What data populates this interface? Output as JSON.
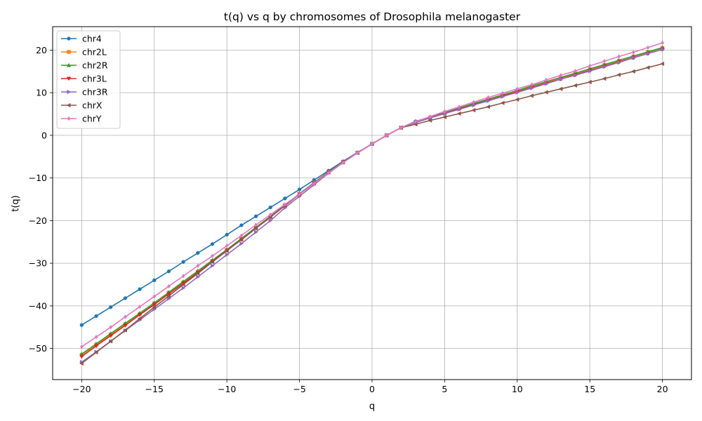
{
  "chart_data": {
    "type": "line",
    "title": "t(q) vs q by chromosomes of Drosophila melanogaster",
    "xlabel": "q",
    "ylabel": "t(q)",
    "xlim": [
      -22,
      22
    ],
    "ylim": [
      -57.3,
      25.5
    ],
    "xticks": [
      -20,
      -15,
      -10,
      -5,
      0,
      5,
      10,
      15,
      20
    ],
    "yticks": [
      -50,
      -40,
      -30,
      -20,
      -10,
      0,
      10,
      20
    ],
    "tick_labels_x": [
      "−20",
      "−15",
      "−10",
      "−5",
      "0",
      "5",
      "10",
      "15",
      "20"
    ],
    "tick_labels_y": [
      "−50",
      "−40",
      "−30",
      "−20",
      "−10",
      "0",
      "10",
      "20"
    ],
    "grid": true,
    "legend_position": "upper-left",
    "x": [
      -20,
      -19,
      -18,
      -17,
      -16,
      -15,
      -14,
      -13,
      -12,
      -11,
      -10,
      -9,
      -8,
      -7,
      -6,
      -5,
      -4,
      -3,
      -2,
      -1,
      0,
      1,
      2,
      3,
      4,
      5,
      6,
      7,
      8,
      9,
      10,
      11,
      12,
      13,
      14,
      15,
      16,
      17,
      18,
      19,
      20
    ],
    "series": [
      {
        "name": "chr4",
        "color": "#1f77b4",
        "marker": "circle",
        "values": [
          -44.5,
          -42.4,
          -40.3,
          -38.2,
          -36.1,
          -34.0,
          -31.9,
          -29.7,
          -27.6,
          -25.5,
          -23.3,
          -21.1,
          -19.0,
          -16.9,
          -14.8,
          -12.7,
          -10.5,
          -8.3,
          -6.1,
          -4.0,
          -2.0,
          0.0,
          1.8,
          3.3,
          4.3,
          5.3,
          6.2,
          7.2,
          8.3,
          9.3,
          10.2,
          11.3,
          12.3,
          13.2,
          14.2,
          15.2,
          16.2,
          17.2,
          18.2,
          19.2,
          20.2
        ]
      },
      {
        "name": "chr2L",
        "color": "#ff7f0e",
        "marker": "square",
        "values": [
          -51.5,
          -49.1,
          -46.7,
          -44.3,
          -41.9,
          -39.4,
          -36.9,
          -34.5,
          -32.0,
          -29.5,
          -26.9,
          -24.3,
          -21.7,
          -19.1,
          -16.4,
          -13.7,
          -11.1,
          -8.6,
          -6.3,
          -4.1,
          -2.0,
          0.0,
          1.8,
          3.0,
          4.1,
          5.2,
          6.3,
          7.4,
          8.4,
          9.4,
          10.4,
          11.4,
          12.4,
          13.4,
          14.5,
          15.5,
          16.5,
          17.5,
          18.5,
          19.5,
          20.5
        ]
      },
      {
        "name": "chr2R",
        "color": "#2ca02c",
        "marker": "triangle-up",
        "values": [
          -51.3,
          -48.9,
          -46.5,
          -44.1,
          -41.7,
          -39.3,
          -36.8,
          -34.3,
          -31.8,
          -29.3,
          -26.8,
          -24.2,
          -21.6,
          -19.0,
          -16.4,
          -13.7,
          -11.1,
          -8.6,
          -6.3,
          -4.1,
          -2.0,
          0.0,
          1.8,
          3.1,
          4.2,
          5.3,
          6.4,
          7.5,
          8.5,
          9.5,
          10.5,
          11.6,
          12.6,
          13.6,
          14.6,
          15.6,
          16.6,
          17.6,
          18.6,
          19.6,
          20.6
        ]
      },
      {
        "name": "chr3L",
        "color": "#d62728",
        "marker": "triangle-down",
        "values": [
          -51.9,
          -49.4,
          -47.0,
          -44.6,
          -42.1,
          -39.7,
          -37.2,
          -34.7,
          -32.2,
          -29.6,
          -27.0,
          -24.5,
          -21.8,
          -19.2,
          -16.5,
          -13.8,
          -11.2,
          -8.7,
          -6.3,
          -4.1,
          -2.0,
          0.0,
          1.8,
          3.0,
          4.1,
          5.2,
          6.2,
          7.2,
          8.2,
          9.2,
          10.2,
          11.2,
          12.2,
          13.2,
          14.2,
          15.2,
          16.2,
          17.2,
          18.2,
          19.2,
          20.2
        ]
      },
      {
        "name": "chr3R",
        "color": "#9467bd",
        "marker": "triangle-right",
        "values": [
          -53.2,
          -50.8,
          -48.3,
          -45.8,
          -43.3,
          -40.8,
          -38.3,
          -35.8,
          -33.2,
          -30.6,
          -28.0,
          -25.4,
          -22.7,
          -20.0,
          -17.0,
          -14.3,
          -11.6,
          -8.9,
          -6.4,
          -4.1,
          -2.0,
          0.0,
          1.8,
          3.0,
          4.1,
          5.1,
          6.1,
          7.1,
          8.1,
          9.1,
          10.1,
          11.1,
          12.1,
          13.2,
          14.1,
          15.1,
          16.1,
          17.1,
          18.2,
          19.2,
          20.2
        ]
      },
      {
        "name": "chrX",
        "color": "#8c564b",
        "marker": "triangle-left",
        "values": [
          -53.5,
          -50.9,
          -48.3,
          -45.7,
          -43.0,
          -40.3,
          -37.7,
          -35.0,
          -32.4,
          -29.7,
          -27.1,
          -24.4,
          -21.8,
          -19.1,
          -16.5,
          -13.8,
          -11.2,
          -8.7,
          -6.3,
          -4.1,
          -2.0,
          0.0,
          1.8,
          2.6,
          3.5,
          4.3,
          5.1,
          5.9,
          6.7,
          7.6,
          8.4,
          9.3,
          10.1,
          10.9,
          11.7,
          12.5,
          13.3,
          14.2,
          15.0,
          15.9,
          16.8
        ]
      },
      {
        "name": "chrY",
        "color": "#e377c2",
        "marker": "diamond",
        "values": [
          -49.6,
          -47.3,
          -45.0,
          -42.6,
          -40.2,
          -37.8,
          -35.4,
          -33.0,
          -30.6,
          -28.3,
          -25.9,
          -23.5,
          -21.0,
          -18.6,
          -16.2,
          -13.8,
          -11.3,
          -8.8,
          -6.4,
          -4.1,
          -2.0,
          0.0,
          1.8,
          3.2,
          4.4,
          5.6,
          6.7,
          7.8,
          8.9,
          9.9,
          10.9,
          11.9,
          13.0,
          14.1,
          15.1,
          16.3,
          17.4,
          18.5,
          19.5,
          20.6,
          21.7
        ]
      }
    ]
  }
}
